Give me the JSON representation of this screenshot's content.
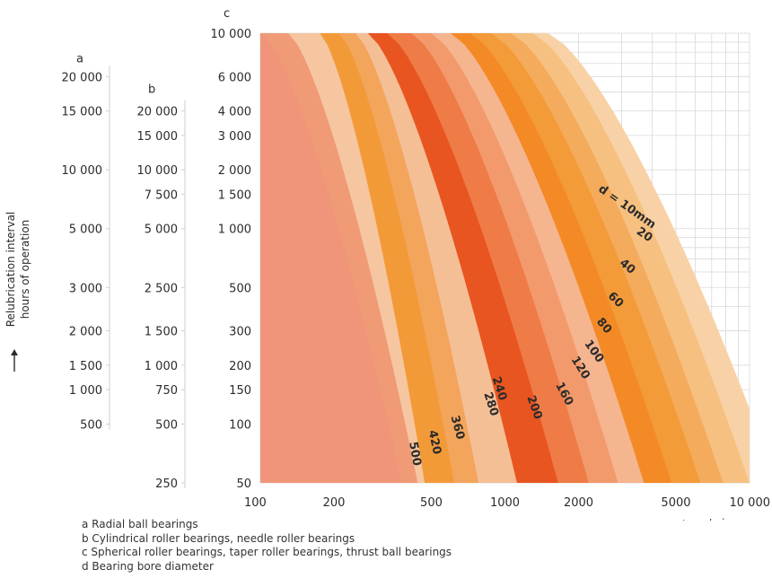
{
  "chart_data": {
    "type": "area",
    "x_scale": "log",
    "y_scale": "log",
    "xlim": [
      100,
      10000
    ],
    "ylim": [
      50,
      10000
    ],
    "x_ticks": [
      100,
      200,
      500,
      1000,
      2000,
      5000,
      10000
    ],
    "x_tick_labels": [
      "100",
      "200",
      "500",
      "1000",
      "2000",
      "5000",
      "10 000"
    ],
    "x_axis_label": "n r/min",
    "y_axis_title": [
      "Relubrication interval",
      "hours of operation"
    ],
    "axes": {
      "a": {
        "letter": "a",
        "ticks": [
          {
            "c": 6000,
            "label": "20 000"
          },
          {
            "c": 4000,
            "label": "15 000"
          },
          {
            "c": 2000,
            "label": "10 000"
          },
          {
            "c": 1000,
            "label": "5 000"
          },
          {
            "c": 500,
            "label": "3 000"
          },
          {
            "c": 300,
            "label": "2 000"
          },
          {
            "c": 200,
            "label": "1 500"
          },
          {
            "c": 150,
            "label": "1 000"
          },
          {
            "c": 100,
            "label": "500"
          }
        ]
      },
      "b": {
        "letter": "b",
        "ticks": [
          {
            "c": 4000,
            "label": "20 000"
          },
          {
            "c": 3000,
            "label": "15 000"
          },
          {
            "c": 2000,
            "label": "10 000"
          },
          {
            "c": 1500,
            "label": "7 500"
          },
          {
            "c": 1000,
            "label": "5 000"
          },
          {
            "c": 500,
            "label": "2 500"
          },
          {
            "c": 300,
            "label": "1 500"
          },
          {
            "c": 200,
            "label": "1 000"
          },
          {
            "c": 150,
            "label": "750"
          },
          {
            "c": 100,
            "label": "500"
          },
          {
            "c": 50,
            "label": "250"
          }
        ]
      },
      "c": {
        "letter": "c",
        "ticks": [
          {
            "c": 10000,
            "label": "10 000"
          },
          {
            "c": 6000,
            "label": "6 000"
          },
          {
            "c": 4000,
            "label": "4 000"
          },
          {
            "c": 3000,
            "label": "3 000"
          },
          {
            "c": 2000,
            "label": "2 000"
          },
          {
            "c": 1500,
            "label": "1 500"
          },
          {
            "c": 1000,
            "label": "1 000"
          },
          {
            "c": 500,
            "label": "500"
          },
          {
            "c": 300,
            "label": "300"
          },
          {
            "c": 200,
            "label": "200"
          },
          {
            "c": 150,
            "label": "150"
          },
          {
            "c": 100,
            "label": "100"
          },
          {
            "c": 50,
            "label": "50"
          }
        ]
      }
    },
    "series": [
      {
        "name": "d = 10mm",
        "bore_mm": 10,
        "n_at_10000h": 1500,
        "n_at_50h": 13000,
        "color": "#f8d2a6"
      },
      {
        "name": "20",
        "bore_mm": 20,
        "n_at_10000h": 1300,
        "n_at_50h": 10000,
        "color": "#f6c080"
      },
      {
        "name": "40",
        "bore_mm": 40,
        "n_at_10000h": 1060,
        "n_at_50h": 7800,
        "color": "#f4ab5c"
      },
      {
        "name": "60",
        "bore_mm": 60,
        "n_at_10000h": 880,
        "n_at_50h": 6300,
        "color": "#f39b38"
      },
      {
        "name": "80",
        "bore_mm": 80,
        "n_at_10000h": 720,
        "n_at_50h": 4800,
        "color": "#f38a25"
      },
      {
        "name": "100",
        "bore_mm": 100,
        "n_at_10000h": 600,
        "n_at_50h": 3700,
        "color": "#f5b58f"
      },
      {
        "name": "120",
        "bore_mm": 120,
        "n_at_10000h": 500,
        "n_at_50h": 2900,
        "color": "#f39a6c"
      },
      {
        "name": "160",
        "bore_mm": 160,
        "n_at_10000h": 415,
        "n_at_50h": 2200,
        "color": "#ef7b47"
      },
      {
        "name": "200",
        "bore_mm": 200,
        "n_at_10000h": 330,
        "n_at_50h": 1650,
        "color": "#e85521"
      },
      {
        "name": "240",
        "bore_mm": 240,
        "n_at_10000h": 275,
        "n_at_50h": 1120,
        "color": "#f5bf96"
      },
      {
        "name": "280",
        "bore_mm": 280,
        "n_at_10000h": 245,
        "n_at_50h": 780,
        "color": "#f4a55c"
      },
      {
        "name": "360",
        "bore_mm": 360,
        "n_at_10000h": 210,
        "n_at_50h": 620,
        "color": "#f39a38"
      },
      {
        "name": "420",
        "bore_mm": 420,
        "n_at_10000h": 175,
        "n_at_50h": 470,
        "color": "#f6c6a0"
      },
      {
        "name": "500",
        "bore_mm": 500,
        "n_at_10000h": 130,
        "n_at_50h": 440,
        "color": "#f09a76"
      }
    ],
    "grid": true,
    "grid_region": "upper-right white area only",
    "curve_labels": [
      {
        "text": "d = 10mm",
        "n": 3100,
        "c": 1250,
        "rot": 35
      },
      {
        "text": "20",
        "n": 3650,
        "c": 900,
        "rot": 35
      },
      {
        "text": "40",
        "n": 3100,
        "c": 620,
        "rot": 40
      },
      {
        "text": "60",
        "n": 2770,
        "c": 420,
        "rot": 45
      },
      {
        "text": "80",
        "n": 2480,
        "c": 310,
        "rot": 50
      },
      {
        "text": "100",
        "n": 2250,
        "c": 230,
        "rot": 55
      },
      {
        "text": "120",
        "n": 1980,
        "c": 190,
        "rot": 58
      },
      {
        "text": "160",
        "n": 1700,
        "c": 140,
        "rot": 62
      },
      {
        "text": "200",
        "n": 1280,
        "c": 120,
        "rot": 70
      },
      {
        "text": "240",
        "n": 920,
        "c": 150,
        "rot": 72
      },
      {
        "text": "280",
        "n": 850,
        "c": 125,
        "rot": 72
      },
      {
        "text": "360",
        "n": 620,
        "c": 95,
        "rot": 75
      },
      {
        "text": "420",
        "n": 500,
        "c": 80,
        "rot": 78
      },
      {
        "text": "500",
        "n": 415,
        "c": 70,
        "rot": 80
      }
    ]
  },
  "legend_notes": [
    "a Radial ball bearings",
    "b Cylindrical roller bearings, needle roller bearings",
    "c Spherical roller bearings, taper roller bearings, thrust ball bearings",
    "d Bearing bore diameter"
  ],
  "colors": {
    "background_region": "#f0957a",
    "grid": "#d9d9d9",
    "text": "#2b2b2b"
  }
}
